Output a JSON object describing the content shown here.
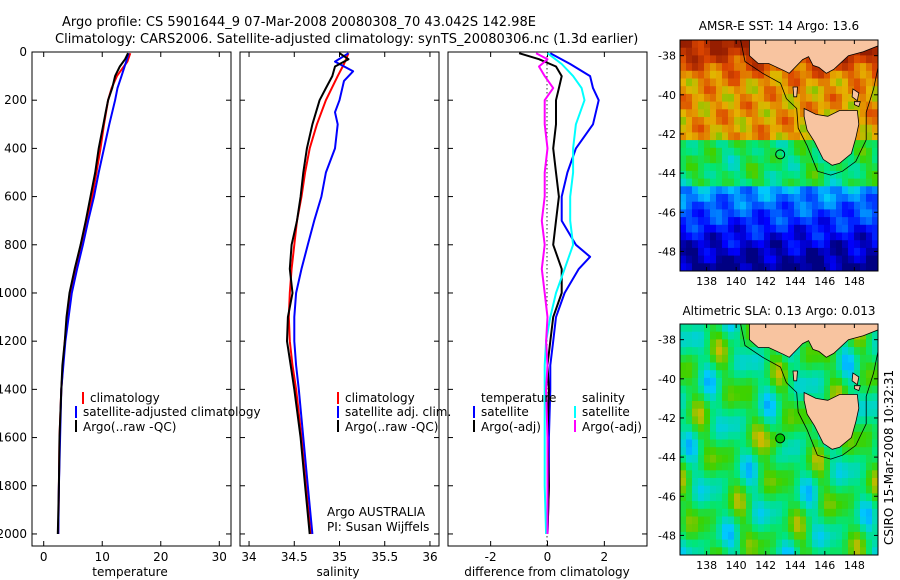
{
  "title": {
    "line1": "Argo profile: CS 5901644_9 07-Mar-2008 20080308_70 43.042S 142.98E",
    "line2": "Climatology: CARS2006. Satellite-adjusted climatology: synTS_20080306.nc (1.3d earlier)"
  },
  "footer": {
    "credit1": "Argo AUSTRALIA",
    "credit2": "PI: Susan Wijffels",
    "stamp": "CSIRO 15-Mar-2008 10:32:31"
  },
  "colors": {
    "climatology": "#ff0000",
    "satellite": "#0000ff",
    "argo": "#000000",
    "satellite_salinity": "#00ffff",
    "argo_salinity": "#ff00ff",
    "argo_marker": "#00c000"
  },
  "chart_data": [
    {
      "type": "line",
      "xlabel": "temperature",
      "ylabel": "",
      "xlim": [
        -2,
        32
      ],
      "ylim": [
        2050,
        0
      ],
      "xticks": [
        0,
        10,
        20,
        30
      ],
      "yticks": [
        0,
        200,
        400,
        600,
        800,
        1000,
        1200,
        1400,
        1600,
        1800,
        2000
      ],
      "legend": [
        "climatology",
        "satellite-adjusted climatology",
        "Argo(..raw -QC)"
      ],
      "series": [
        {
          "name": "climatology",
          "color": "#ff0000",
          "y": [
            5,
            40,
            100,
            150,
            200,
            300,
            400,
            500,
            600,
            700,
            800,
            900,
            1000,
            1200,
            1400,
            1600,
            1800,
            2000
          ],
          "x": [
            14.8,
            14.3,
            12.5,
            11.6,
            11.0,
            10.3,
            9.7,
            9.0,
            8.3,
            7.4,
            6.5,
            5.5,
            4.6,
            3.6,
            3.0,
            2.7,
            2.6,
            2.5
          ]
        },
        {
          "name": "satellite-adjusted climatology",
          "color": "#0000ff",
          "y": [
            5,
            40,
            100,
            150,
            200,
            300,
            400,
            500,
            600,
            700,
            800,
            900,
            1000,
            1200,
            1400,
            1600,
            1800,
            2000
          ],
          "x": [
            14.5,
            14.1,
            13.3,
            12.6,
            12.2,
            11.2,
            10.3,
            9.4,
            8.6,
            7.6,
            6.7,
            5.7,
            4.8,
            3.7,
            3.0,
            2.8,
            2.6,
            2.5
          ]
        },
        {
          "name": "Argo(..raw -QC)",
          "color": "#000000",
          "y": [
            5,
            30,
            60,
            100,
            150,
            200,
            250,
            300,
            400,
            500,
            600,
            700,
            800,
            900,
            1000,
            1100,
            1200,
            1300,
            1400,
            1600,
            1800,
            2000
          ],
          "x": [
            14.4,
            13.9,
            13.0,
            12.2,
            11.7,
            11.0,
            10.6,
            10.2,
            9.4,
            8.8,
            8.0,
            7.2,
            6.3,
            5.3,
            4.4,
            3.9,
            3.6,
            3.2,
            3.0,
            2.7,
            2.6,
            2.4
          ]
        }
      ]
    },
    {
      "type": "line",
      "xlabel": "salinity",
      "ylabel": "",
      "xlim": [
        33.9,
        36.1
      ],
      "ylim": [
        2050,
        0
      ],
      "xticks": [
        34,
        34.5,
        35,
        35.5,
        36
      ],
      "legend": [
        "climatology",
        "satellite adj. clim.",
        "Argo(..raw -QC)"
      ],
      "series": [
        {
          "name": "climatology",
          "color": "#ff0000",
          "y": [
            5,
            50,
            100,
            200,
            300,
            400,
            500,
            600,
            700,
            800,
            900,
            1000,
            1100,
            1200,
            1300,
            1400,
            1600,
            1800,
            2000
          ],
          "x": [
            35.1,
            35.05,
            34.98,
            34.85,
            34.75,
            34.67,
            34.62,
            34.58,
            34.53,
            34.5,
            34.47,
            34.45,
            34.44,
            34.45,
            34.48,
            34.52,
            34.58,
            34.63,
            34.68
          ]
        },
        {
          "name": "satellite adj. clim.",
          "color": "#0000ff",
          "y": [
            5,
            40,
            80,
            120,
            200,
            250,
            300,
            400,
            500,
            600,
            700,
            800,
            900,
            1000,
            1100,
            1200,
            1300,
            1400,
            1600,
            1800,
            2000
          ],
          "x": [
            35.1,
            34.95,
            35.15,
            35.05,
            35.0,
            34.95,
            34.98,
            34.95,
            34.85,
            34.8,
            34.72,
            34.65,
            34.58,
            34.52,
            34.5,
            34.5,
            34.52,
            34.55,
            34.6,
            34.65,
            34.7
          ]
        },
        {
          "name": "Argo(..raw -QC)",
          "color": "#000000",
          "y": [
            5,
            30,
            60,
            100,
            150,
            200,
            300,
            400,
            500,
            600,
            700,
            800,
            900,
            1000,
            1100,
            1200,
            1300,
            1400,
            1600,
            1800,
            2000
          ],
          "x": [
            35.0,
            35.1,
            34.95,
            34.92,
            34.85,
            34.78,
            34.7,
            34.64,
            34.6,
            34.57,
            34.53,
            34.47,
            34.45,
            34.48,
            34.43,
            34.42,
            34.46,
            34.5,
            34.57,
            34.62,
            34.67
          ]
        }
      ]
    },
    {
      "type": "line",
      "xlabel": "difference from climatology",
      "ylabel": "",
      "xlim": [
        -3.5,
        3.5
      ],
      "ylim": [
        2050,
        0
      ],
      "xticks": [
        -2,
        0,
        2
      ],
      "legend_groups": [
        {
          "title": "temperature",
          "items": [
            "satellite",
            "Argo(-adj)"
          ]
        },
        {
          "title": "salinity",
          "items": [
            "satellite",
            "Argo(-adj)"
          ]
        }
      ],
      "series": [
        {
          "name": "temperature satellite",
          "color": "#0000ff",
          "y": [
            5,
            50,
            100,
            150,
            200,
            300,
            400,
            500,
            600,
            700,
            800,
            850,
            900,
            1000,
            1100,
            1200,
            1300,
            1400,
            1600,
            1800,
            2000
          ],
          "x": [
            0.1,
            0.8,
            1.5,
            1.6,
            1.8,
            1.6,
            1.0,
            0.7,
            0.5,
            0.5,
            1.0,
            1.5,
            1.1,
            0.6,
            0.3,
            0.2,
            0.1,
            0.1,
            0.05,
            0.05,
            0.0
          ]
        },
        {
          "name": "temperature Argo(-adj)",
          "color": "#000000",
          "y": [
            5,
            30,
            60,
            100,
            150,
            200,
            300,
            400,
            500,
            600,
            700,
            800,
            900,
            1000,
            1100,
            1200,
            1300,
            1400,
            1600,
            1800,
            2000
          ],
          "x": [
            -1.0,
            -0.3,
            0.3,
            0.5,
            0.4,
            0.3,
            0.3,
            0.2,
            0.3,
            0.4,
            0.3,
            0.2,
            0.5,
            0.5,
            0.2,
            0.1,
            0.0,
            0.05,
            0.0,
            0.05,
            0.0
          ]
        },
        {
          "name": "salinity satellite",
          "color": "#00ffff",
          "y": [
            5,
            50,
            100,
            150,
            200,
            300,
            400,
            500,
            600,
            700,
            800,
            900,
            1000,
            1100,
            1200,
            1300,
            1400,
            1600,
            1800,
            2000
          ],
          "x": [
            0.0,
            0.5,
            0.9,
            1.2,
            1.3,
            1.0,
            0.9,
            0.9,
            0.8,
            0.8,
            0.9,
            0.6,
            0.3,
            0.1,
            -0.05,
            -0.1,
            -0.1,
            -0.1,
            -0.1,
            -0.05
          ]
        },
        {
          "name": "salinity Argo(-adj)",
          "color": "#ff00ff",
          "y": [
            5,
            30,
            60,
            100,
            150,
            200,
            300,
            400,
            500,
            600,
            700,
            800,
            900,
            1000,
            1100,
            1200,
            1300,
            1400,
            1600,
            1800,
            2000
          ],
          "x": [
            -0.4,
            0.0,
            -0.3,
            -0.1,
            0.2,
            -0.1,
            -0.1,
            0.0,
            -0.1,
            -0.1,
            -0.2,
            -0.1,
            -0.2,
            -0.1,
            0.0,
            -0.05,
            0.0,
            -0.05,
            0.0,
            0.0,
            0.0
          ]
        }
      ]
    },
    {
      "type": "heatmap",
      "title": "AMSR-E SST: 14 Argo: 13.6",
      "xlim": [
        136.2,
        149.6
      ],
      "ylim": [
        -49,
        -37.2
      ],
      "xticks": [
        138,
        140,
        142,
        144,
        146,
        148
      ],
      "yticks": [
        -38,
        -40,
        -42,
        -44,
        -46,
        -48
      ],
      "argo_position": {
        "lon": 142.98,
        "lat": -43.042
      }
    },
    {
      "type": "heatmap",
      "title": "Altimetric SLA: 0.13 Argo: 0.013",
      "xlim": [
        136.2,
        149.6
      ],
      "ylim": [
        -49,
        -37.2
      ],
      "xticks": [
        138,
        140,
        142,
        144,
        146,
        148
      ],
      "yticks": [
        -38,
        -40,
        -42,
        -44,
        -46,
        -48
      ],
      "argo_position": {
        "lon": 142.98,
        "lat": -43.042
      }
    }
  ]
}
